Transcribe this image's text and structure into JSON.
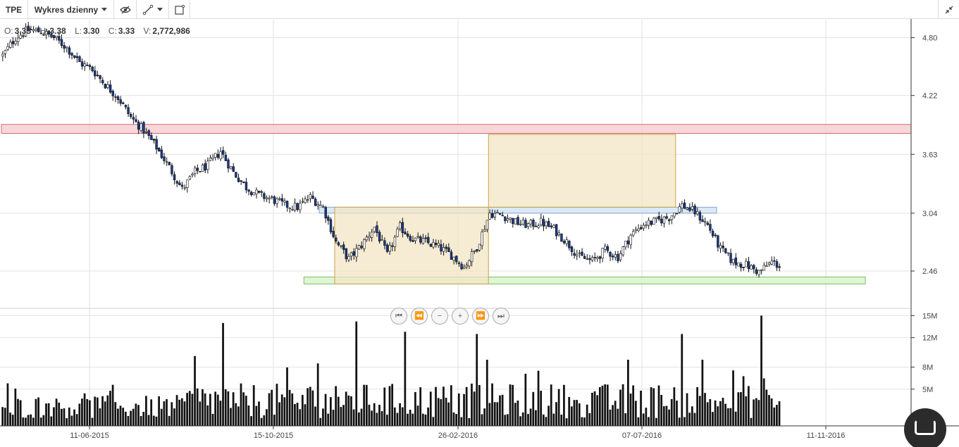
{
  "toolbar": {
    "symbol": "TPE",
    "interval_label": "Wykres dzienny",
    "eye_icon": "eye-slash-icon",
    "draw_icon": "line-tool-icon",
    "rect_icon": "rectangle-tool-icon",
    "collapse_icon": "collapse-icon"
  },
  "ohlc": {
    "o_label": "O:",
    "o": "3.35",
    "h_label": "H:",
    "h": "3.38",
    "l_label": "L:",
    "l": "3.30",
    "c_label": "C:",
    "c": "3.33",
    "v_label": "V:",
    "v": "2,772,986"
  },
  "navigation": {
    "first": "⏮",
    "back": "⏪",
    "zoom_out": "−",
    "zoom_in": "+",
    "forward": "⏩",
    "last": "⏭"
  },
  "colors": {
    "candle_up": "#ffffff",
    "candle_down": "#1a3a8a",
    "wick": "#111111",
    "volume": "#111111",
    "resistance_zone": "#f4c9cc",
    "support_zone": "#d6f2c8",
    "mid_zone": "#cfe2f3",
    "range_box": "#f3e6c4",
    "grid": "#e2e2e2"
  },
  "chart_data": {
    "type": "candlestick",
    "y_axis": {
      "ticks": [
        "4.80",
        "4.22",
        "3.63",
        "3.04",
        "2.46"
      ],
      "range": [
        2.1,
        4.98
      ]
    },
    "volume_axis": {
      "ticks": [
        "15M",
        "12M",
        "8M",
        "5M"
      ],
      "range": [
        0,
        15.8
      ]
    },
    "x_axis": {
      "ticks": [
        "11-06-2015",
        "15-10-2015",
        "26-02-2016",
        "07-07-2016",
        "11-11-2016"
      ]
    },
    "close_path": [
      [
        0,
        4.62
      ],
      [
        5,
        4.8
      ],
      [
        10,
        4.88
      ],
      [
        15,
        4.86
      ],
      [
        20,
        4.8
      ],
      [
        25,
        4.7
      ],
      [
        30,
        4.55
      ],
      [
        35,
        4.48
      ],
      [
        40,
        4.33
      ],
      [
        45,
        4.2
      ],
      [
        50,
        4.0
      ],
      [
        55,
        3.87
      ],
      [
        60,
        3.7
      ],
      [
        65,
        3.5
      ],
      [
        70,
        3.28
      ],
      [
        75,
        3.45
      ],
      [
        80,
        3.52
      ],
      [
        85,
        3.66
      ],
      [
        90,
        3.45
      ],
      [
        95,
        3.3
      ],
      [
        100,
        3.22
      ],
      [
        105,
        3.18
      ],
      [
        110,
        3.12
      ],
      [
        115,
        3.1
      ],
      [
        120,
        3.2
      ],
      [
        125,
        3.1
      ],
      [
        130,
        2.75
      ],
      [
        135,
        2.58
      ],
      [
        140,
        2.72
      ],
      [
        145,
        2.9
      ],
      [
        150,
        2.62
      ],
      [
        155,
        2.9
      ],
      [
        160,
        2.78
      ],
      [
        165,
        2.75
      ],
      [
        170,
        2.7
      ],
      [
        175,
        2.62
      ],
      [
        180,
        2.5
      ],
      [
        185,
        2.7
      ],
      [
        190,
        3.04
      ],
      [
        195,
        3.02
      ],
      [
        200,
        2.95
      ],
      [
        205,
        2.92
      ],
      [
        210,
        2.95
      ],
      [
        215,
        2.88
      ],
      [
        220,
        2.75
      ],
      [
        225,
        2.6
      ],
      [
        230,
        2.56
      ],
      [
        235,
        2.67
      ],
      [
        240,
        2.6
      ],
      [
        245,
        2.82
      ],
      [
        250,
        2.93
      ],
      [
        255,
        2.96
      ],
      [
        260,
        3.0
      ],
      [
        265,
        3.12
      ],
      [
        270,
        3.05
      ],
      [
        275,
        2.92
      ],
      [
        280,
        2.68
      ],
      [
        285,
        2.55
      ],
      [
        290,
        2.52
      ],
      [
        295,
        2.45
      ],
      [
        300,
        2.55
      ],
      [
        304,
        2.5
      ]
    ],
    "total_bars": 304,
    "volume_spikes": [
      {
        "bar": 75,
        "value": 9.5
      },
      {
        "bar": 86,
        "value": 14.0
      },
      {
        "bar": 138,
        "value": 14.2
      },
      {
        "bar": 157,
        "value": 12.8
      },
      {
        "bar": 185,
        "value": 12.5
      },
      {
        "bar": 189,
        "value": 9.0
      },
      {
        "bar": 265,
        "value": 12.5
      },
      {
        "bar": 296,
        "value": 15.0
      },
      {
        "bar": 244,
        "value": 9.0
      },
      {
        "bar": 123,
        "value": 8.5
      },
      {
        "bar": 209,
        "value": 7.5
      },
      {
        "bar": 273,
        "value": 9.0
      }
    ],
    "zones": [
      {
        "kind": "resistance",
        "from": 0,
        "to": "end",
        "y_low": 3.84,
        "y_high": 3.93
      },
      {
        "kind": "support",
        "from": 118,
        "to": 337,
        "y_low": 2.33,
        "y_high": 2.4
      },
      {
        "kind": "mid",
        "from": 124,
        "to": 279,
        "y_low": 3.04,
        "y_high": 3.1
      },
      {
        "kind": "range",
        "from": 130,
        "to": 190,
        "y_low": 2.33,
        "y_high": 3.1
      },
      {
        "kind": "range",
        "from": 190,
        "to": 263,
        "y_low": 3.1,
        "y_high": 3.83
      }
    ]
  }
}
